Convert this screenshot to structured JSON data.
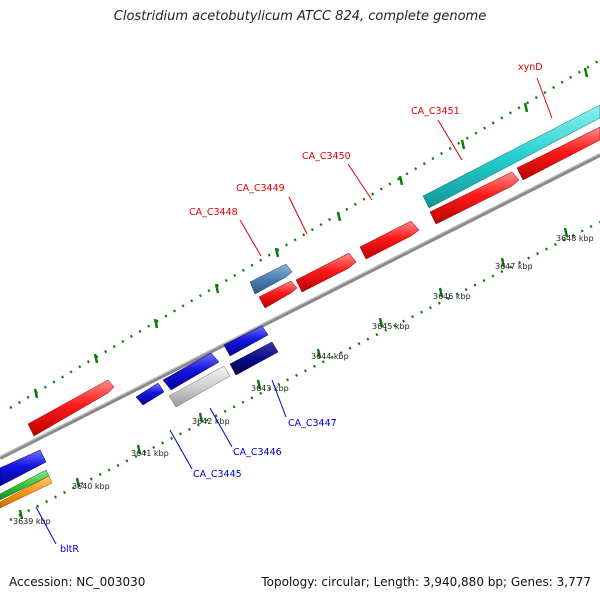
{
  "title": "Clostridium acetobutylicum ATCC 824, complete genome",
  "footer": {
    "accession": "Accession: NC_003030",
    "topology": "Topology: circular; Length: 3,940,880 bp; Genes: 3,777"
  },
  "colors": {
    "red": "#ff1c1c",
    "blue": "#1111dd",
    "navy": "#0a0a88",
    "steel": "#4a7fb5",
    "gray": "#cfcfcf",
    "cyan": "#24d0d0",
    "green": "#36c436",
    "orange": "#ff9511",
    "tick": "#0f7a0f",
    "backbone": "#8a8a8a",
    "label_red": "#e00000",
    "label_blue": "#0000cc"
  },
  "scale_ticks": [
    "3639 kbp",
    "3640 kbp",
    "3641 kbp",
    "3642 kbp",
    "3643 kbp",
    "3644 kbp",
    "3645 kbp",
    "3646 kbp",
    "3647 kbp",
    "3648 kbp"
  ],
  "gene_labels": {
    "xynD": "xynD",
    "CA_C3451": "CA_C3451",
    "CA_C3450": "CA_C3450",
    "CA_C3449": "CA_C3449",
    "CA_C3448": "CA_C3448",
    "CA_C3447": "CA_C3447",
    "CA_C3446": "CA_C3446",
    "CA_C3445": "CA_C3445",
    "bltR": "bltR"
  }
}
